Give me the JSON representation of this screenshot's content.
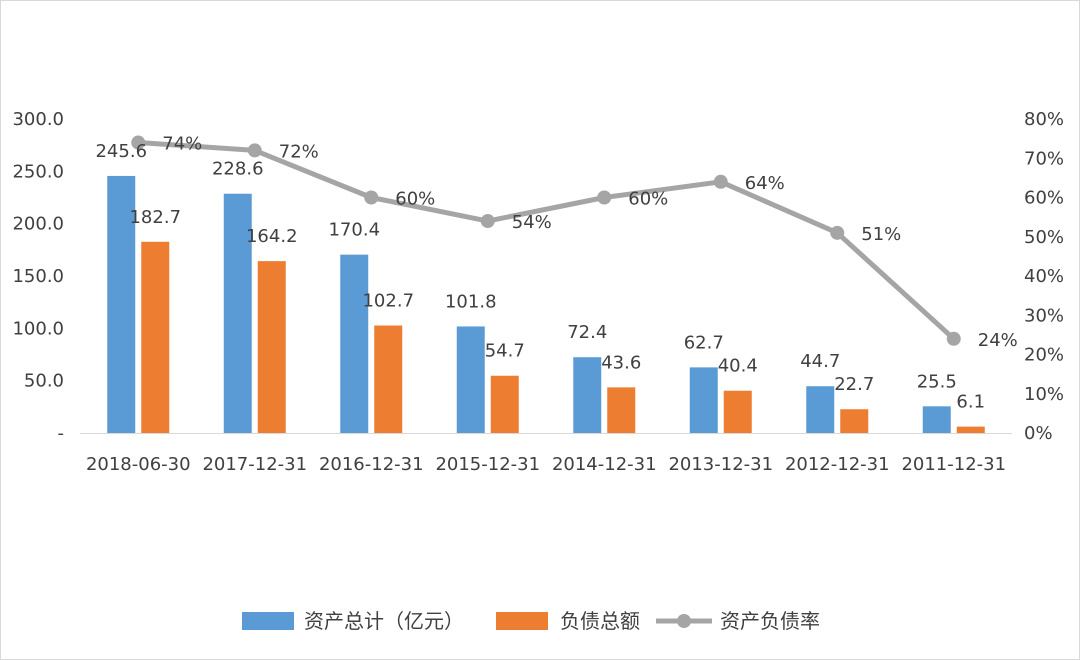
{
  "chart_data": {
    "type": "bar",
    "title": "",
    "categories": [
      "2018-06-30",
      "2017-12-31",
      "2016-12-31",
      "2015-12-31",
      "2014-12-31",
      "2013-12-31",
      "2012-12-31",
      "2011-12-31"
    ],
    "series": [
      {
        "name": "资产总计（亿元）",
        "type": "bar",
        "axis": "left",
        "color": "#5b9bd5",
        "values": [
          245.6,
          228.6,
          170.4,
          101.8,
          72.4,
          62.7,
          44.7,
          25.5
        ],
        "labels": [
          "245.6",
          "228.6",
          "170.4",
          "101.8",
          "72.4",
          "62.7",
          "44.7",
          "25.5"
        ]
      },
      {
        "name": "负债总额",
        "type": "bar",
        "axis": "left",
        "color": "#ed7d31",
        "values": [
          182.7,
          164.2,
          102.7,
          54.7,
          43.6,
          40.4,
          22.7,
          6.1
        ],
        "labels": [
          "182.7",
          "164.2",
          "102.7",
          "54.7",
          "43.6",
          "40.4",
          "22.7",
          "6.1"
        ]
      },
      {
        "name": "资产负债率",
        "type": "line",
        "axis": "right",
        "color": "#a5a5a5",
        "values": [
          0.74,
          0.72,
          0.6,
          0.54,
          0.6,
          0.64,
          0.51,
          0.24
        ],
        "labels": [
          "74%",
          "72%",
          "60%",
          "54%",
          "60%",
          "64%",
          "51%",
          "24%"
        ]
      }
    ],
    "y_left": {
      "min": 0,
      "max": 300,
      "ticks": [
        "-",
        "50.0",
        "100.0",
        "150.0",
        "200.0",
        "250.0",
        "300.0"
      ]
    },
    "y_right": {
      "min": 0,
      "max": 0.8,
      "ticks": [
        "0%",
        "10%",
        "20%",
        "30%",
        "40%",
        "50%",
        "60%",
        "70%",
        "80%"
      ]
    },
    "grid": false,
    "legend": "bottom"
  }
}
